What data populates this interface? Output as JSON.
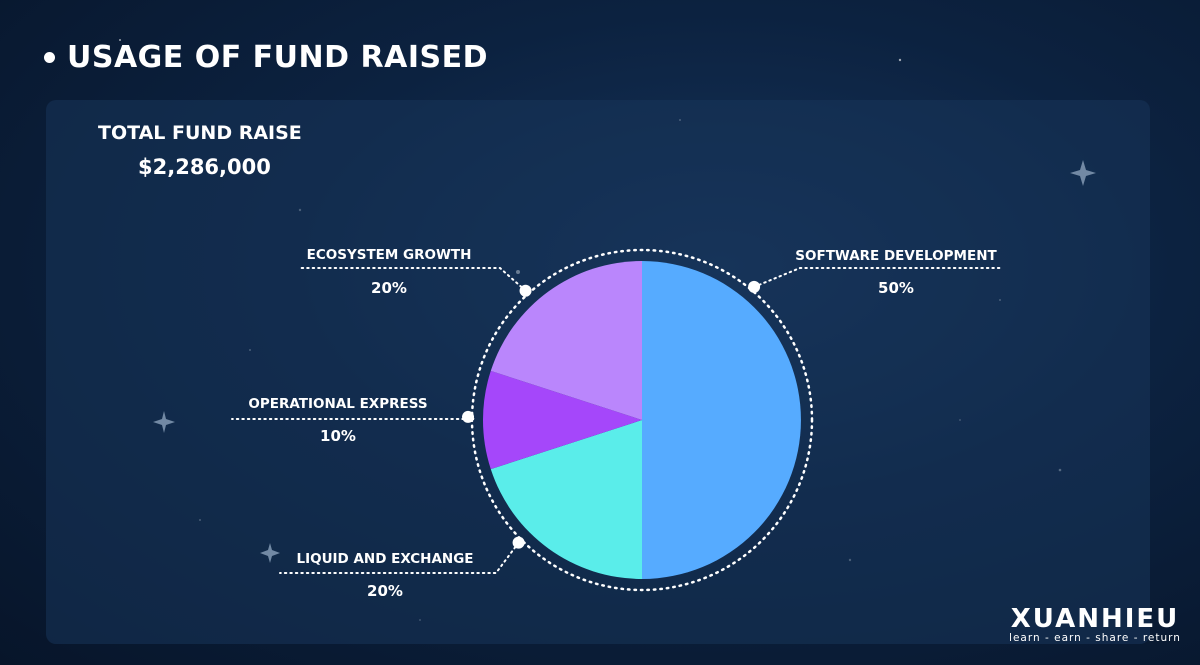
{
  "title": "USAGE OF FUND RAISED",
  "total": {
    "label": "TOTAL FUND RAISE",
    "value": "$2,286,000"
  },
  "brand": {
    "name": "XUANHIEU",
    "tagline": "learn - earn - share - return"
  },
  "colors": {
    "software": "#56abff",
    "liquid": "#5aedea",
    "operational": "#a547fa",
    "ecosystem": "#ba86fc"
  },
  "chart_data": {
    "type": "pie",
    "title": "USAGE OF FUND RAISED",
    "slices": [
      {
        "label": "SOFTWARE DEVELOPMENT",
        "value": 50,
        "display": "50%",
        "color": "#56abff"
      },
      {
        "label": "LIQUID AND EXCHANGE",
        "value": 20,
        "display": "20%",
        "color": "#5aedea"
      },
      {
        "label": "OPERATIONAL EXPRESS",
        "value": 10,
        "display": "10%",
        "color": "#a547fa"
      },
      {
        "label": "ECOSYSTEM GROWTH",
        "value": 20,
        "display": "20%",
        "color": "#ba86fc"
      }
    ]
  }
}
